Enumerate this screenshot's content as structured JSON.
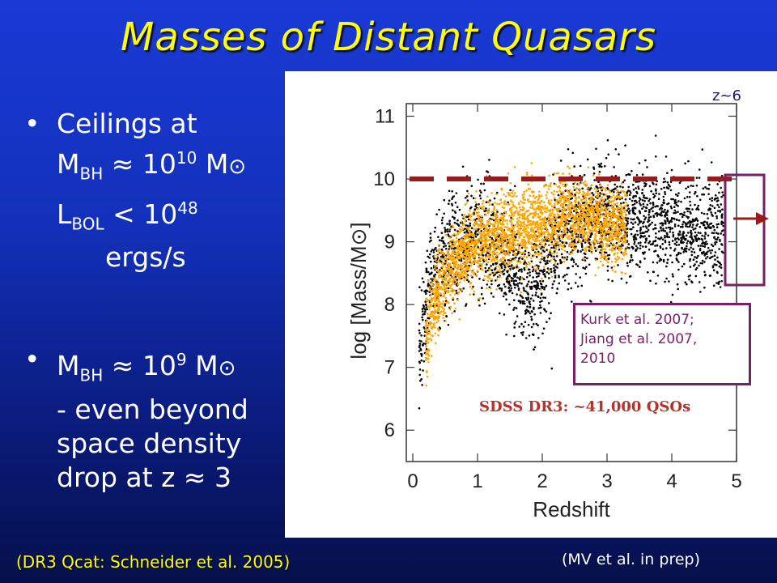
{
  "title": "Masses of Distant Quasars",
  "bullets": {
    "b1_line1": "Ceilings at",
    "b1_mbh": "M",
    "b1_bh_sub": "BH",
    "b1_approx": " ≈ 10",
    "b1_exp1": "10",
    "b1_msun": " M",
    "b1_sun_symbol": "⊙",
    "b1_lbol": "L",
    "b1_bol_sub": "BOL",
    "b1_lt": " < 10",
    "b1_exp2": "48",
    "b1_units": "ergs/s",
    "b2_mbh": "M",
    "b2_bh_sub": "BH",
    "b2_approx": " ≈ 10",
    "b2_exp": "9",
    "b2_msun": " M",
    "b2_sun_symbol": "⊙",
    "b2_line2": "- even beyond",
    "b2_line3": "space density",
    "b2_line4": "drop at z ≈ 3",
    "bullet_glyph": "•"
  },
  "footer_left": "(DR3 Qcat: Schneider et al. 2005)",
  "footer_right": "(MV et al. in prep)",
  "annotations": {
    "z6": "z~6",
    "kurk_1": "Kurk et al. 2007;",
    "kurk_2": "Jiang et al. 2007,",
    "kurk_3": "2010",
    "sdss": "SDSS DR3:  ~41,000 QSOs"
  },
  "colors": {
    "title": "#ffff00",
    "black_points": "#000000",
    "orange_points": "#ffa500",
    "ceiling_line": "#9b1b1b",
    "box": "#7a1e6a"
  },
  "chart_data": {
    "type": "scatter",
    "xlabel": "Redshift",
    "ylabel": "log [Mass/M⊙]",
    "xlim": [
      -0.1,
      5.0
    ],
    "ylim": [
      5.5,
      11.2
    ],
    "xticks": [
      0,
      1,
      2,
      3,
      4,
      5
    ],
    "yticks": [
      6,
      7,
      8,
      9,
      10,
      11
    ],
    "ceiling_log_mass": 10.0,
    "series": [
      {
        "color": "#000000",
        "description_points": [
          [
            0.1,
            7.3
          ],
          [
            0.15,
            7.8
          ],
          [
            0.2,
            8.1
          ],
          [
            0.3,
            8.5
          ],
          [
            0.5,
            8.8
          ],
          [
            0.8,
            9.0
          ],
          [
            1.0,
            9.1
          ],
          [
            1.3,
            8.9
          ],
          [
            1.5,
            8.6
          ],
          [
            1.8,
            8.2
          ],
          [
            2.0,
            8.5
          ],
          [
            2.3,
            9.2
          ],
          [
            2.5,
            9.3
          ],
          [
            3.0,
            9.4
          ],
          [
            3.5,
            9.3
          ],
          [
            4.0,
            9.2
          ],
          [
            4.5,
            9.1
          ],
          [
            4.8,
            9.2
          ]
        ]
      },
      {
        "color": "#ffa500",
        "description_points": [
          [
            0.2,
            7.5
          ],
          [
            0.4,
            8.2
          ],
          [
            0.6,
            8.6
          ],
          [
            0.8,
            8.8
          ],
          [
            1.0,
            9.0
          ],
          [
            1.3,
            9.1
          ],
          [
            1.6,
            9.2
          ],
          [
            2.0,
            9.3
          ],
          [
            2.3,
            9.4
          ],
          [
            2.6,
            9.4
          ],
          [
            3.0,
            9.3
          ],
          [
            3.3,
            9.2
          ]
        ]
      }
    ]
  }
}
